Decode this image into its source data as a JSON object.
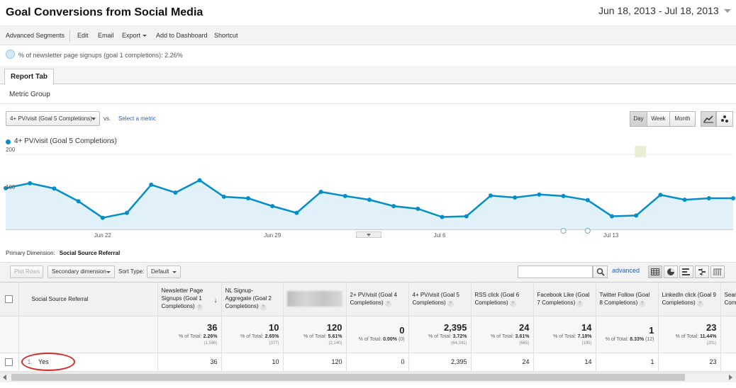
{
  "header": {
    "title": "Goal Conversions from Social Media",
    "date_range": "Jun 18, 2013 - Jul 18, 2013"
  },
  "toolbar": {
    "advanced_segments": "Advanced Segments",
    "edit": "Edit",
    "email": "Email",
    "export": "Export",
    "add_to_dashboard": "Add to Dashboard",
    "shortcut": "Shortcut"
  },
  "segment": {
    "label": "% of newsletter page signups (goal 1 completions): 2.26%"
  },
  "tabs": {
    "report_tab": "Report Tab",
    "metric_group": "Metric Group"
  },
  "chart_controls": {
    "metric": "4+ PV/visit (Goal 5 Completions)",
    "vs": "vs.",
    "select_metric": "Select a metric",
    "day": "Day",
    "week": "Week",
    "month": "Month",
    "active_period": "Day"
  },
  "chart_data": {
    "type": "area",
    "series": [
      {
        "name": "4+ PV/visit (Goal 5 Completions)",
        "color": "#058dc7",
        "values": [
          110,
          123,
          109,
          75,
          31,
          44,
          119,
          98,
          131,
          87,
          83,
          62,
          44,
          100,
          89,
          79,
          62,
          55,
          33,
          35,
          90,
          85,
          93,
          89,
          78,
          35,
          37,
          92,
          79,
          83,
          83
        ]
      }
    ],
    "x_tick_labels": [
      "Jun 22",
      "Jun 29",
      "Jul 6",
      "Jul 13"
    ],
    "x_tick_days": [
      "Jun 22",
      "Jun 29",
      "Jul 6",
      "Jul 13"
    ],
    "x_start": "Jun 18",
    "x_end": "Jul 18",
    "y_ticks": [
      100,
      200
    ],
    "ylim": [
      0,
      200
    ],
    "grid": true
  },
  "table": {
    "primary_dimension_label": "Primary Dimension:",
    "primary_dimension_value": "Social Source Referral",
    "plot_rows": "Plot Rows",
    "secondary_dimension": "Secondary dimension",
    "sort_type_label": "Sort Type:",
    "sort_type_value": "Default",
    "search_placeholder": "",
    "advanced": "advanced",
    "columns": [
      "Social Source Referral",
      "Newsletter Page Signups (Goal 1 Completions)",
      "NL Signup-Aggregate (Goal 2 Completions)",
      "",
      "2+ PV/visit (Goal 4 Completions)",
      "4+ PV/visit (Goal 5 Completions)",
      "RSS click (Goal 6 Completions)",
      "Facebook Like (Goal 7 Completions)",
      "Twitter Follow (Goal 8 Completions)",
      "LinkedIn click (Goal 9 Completions)",
      "Searc (Goa Comp"
    ],
    "totals": [
      {
        "value": "36",
        "pct": "2.26%",
        "abs": "(1,596)"
      },
      {
        "value": "10",
        "pct": "2.65%",
        "abs": "(377)"
      },
      {
        "value": "120",
        "pct": "5.61%",
        "abs": "(2,140)"
      },
      {
        "value": "0",
        "pct": "0.00%",
        "abs": "(0)"
      },
      {
        "value": "2,395",
        "pct": "3.72%",
        "abs": "(64,341)"
      },
      {
        "value": "24",
        "pct": "3.61%",
        "abs": "(665)"
      },
      {
        "value": "14",
        "pct": "7.18%",
        "abs": "(195)"
      },
      {
        "value": "1",
        "pct": "8.33%",
        "abs": "(12)"
      },
      {
        "value": "23",
        "pct": "11.44%",
        "abs": "(201)"
      }
    ],
    "pct_prefix": "% of Total:",
    "rows": [
      {
        "index": "1.",
        "label": "Yes",
        "values": [
          "36",
          "10",
          "120",
          "0",
          "2,395",
          "24",
          "14",
          "1",
          "23",
          ""
        ]
      }
    ]
  }
}
